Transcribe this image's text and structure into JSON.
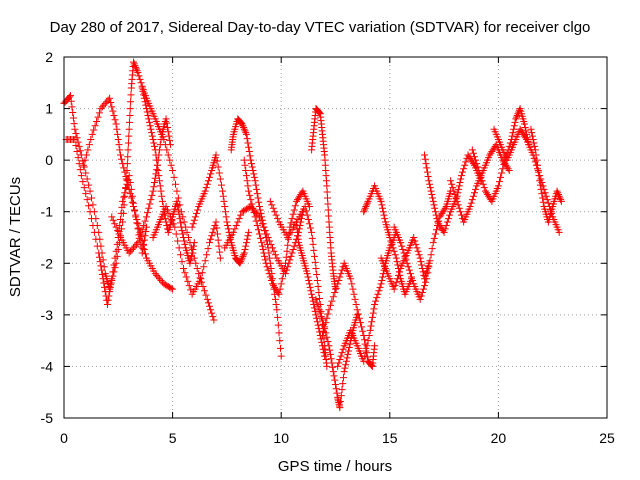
{
  "chart_data": {
    "type": "scatter",
    "title": "Day 280 of 2017, Sidereal Day-to-day VTEC variation (SDTVAR) for receiver clgo",
    "xlabel": "GPS time / hours",
    "ylabel": "SDTVAR / TECUs",
    "xlim": [
      0,
      25
    ],
    "ylim": [
      -5,
      2
    ],
    "x_ticks": [
      0,
      5,
      10,
      15,
      20,
      25
    ],
    "x_tick_labels": [
      "0",
      "5",
      "10",
      "15",
      "20",
      "25"
    ],
    "y_ticks": [
      -5,
      -4,
      -3,
      -2,
      -1,
      0,
      1,
      2
    ],
    "y_tick_labels": [
      "-5",
      "-4",
      "-3",
      "-2",
      "-1",
      "0",
      "1",
      "2"
    ],
    "grid": true,
    "marker": "plus",
    "series_color": "#ff0000",
    "series": [
      {
        "name": "clgo",
        "tracks": [
          [
            [
              0.0,
              1.1
            ],
            [
              0.3,
              1.25
            ],
            [
              0.5,
              0.6
            ],
            [
              0.8,
              0.1
            ],
            [
              1.2,
              -0.6
            ],
            [
              1.6,
              -1.4
            ],
            [
              1.9,
              -2.2
            ],
            [
              2.1,
              -2.5
            ],
            [
              2.4,
              -2.0
            ],
            [
              2.7,
              -1.2
            ],
            [
              2.9,
              -0.2
            ],
            [
              3.0,
              0.6
            ],
            [
              3.1,
              1.4
            ],
            [
              3.2,
              1.9
            ],
            [
              3.4,
              1.7
            ],
            [
              3.7,
              1.3
            ],
            [
              4.0,
              1.0
            ],
            [
              4.3,
              0.7
            ],
            [
              4.6,
              0.4
            ],
            [
              5.0,
              -0.2
            ],
            [
              5.4,
              -1.0
            ],
            [
              5.8,
              -1.6
            ],
            [
              6.2,
              -2.2
            ],
            [
              6.6,
              -2.7
            ],
            [
              6.9,
              -3.1
            ]
          ],
          [
            [
              0.1,
              0.4
            ],
            [
              0.5,
              0.4
            ],
            [
              0.8,
              -0.3
            ],
            [
              1.2,
              -1.0
            ],
            [
              1.6,
              -1.8
            ],
            [
              1.8,
              -2.3
            ],
            [
              2.0,
              -2.8
            ],
            [
              2.2,
              -2.3
            ],
            [
              2.5,
              -1.5
            ],
            [
              2.7,
              -0.8
            ],
            [
              3.0,
              -0.3
            ],
            [
              3.3,
              -1.1
            ],
            [
              3.6,
              -1.8
            ],
            [
              3.8,
              -1.3
            ]
          ],
          [
            [
              0.9,
              -0.1
            ],
            [
              1.3,
              0.5
            ],
            [
              1.7,
              1.0
            ],
            [
              2.1,
              1.2
            ],
            [
              2.4,
              0.7
            ],
            [
              2.6,
              0.1
            ],
            [
              2.9,
              -0.4
            ],
            [
              3.2,
              -0.9
            ],
            [
              3.5,
              -1.4
            ],
            [
              3.8,
              -1.9
            ],
            [
              4.2,
              -2.2
            ],
            [
              4.6,
              -2.4
            ],
            [
              5.0,
              -2.5
            ]
          ],
          [
            [
              2.2,
              -1.1
            ],
            [
              2.6,
              -1.5
            ],
            [
              3.0,
              -1.8
            ],
            [
              3.4,
              -1.6
            ],
            [
              3.8,
              -1.1
            ],
            [
              4.1,
              -0.6
            ],
            [
              4.3,
              -0.1
            ],
            [
              4.5,
              0.5
            ],
            [
              4.7,
              0.8
            ],
            [
              4.9,
              0.3
            ]
          ],
          [
            [
              3.6,
              1.4
            ],
            [
              3.8,
              1.0
            ],
            [
              4.0,
              0.6
            ],
            [
              4.2,
              0.2
            ],
            [
              4.4,
              -0.4
            ],
            [
              4.6,
              -1.0
            ],
            [
              4.8,
              -1.4
            ],
            [
              5.0,
              -1.1
            ],
            [
              5.2,
              -0.8
            ],
            [
              5.4,
              -1.3
            ],
            [
              5.6,
              -1.7
            ],
            [
              5.8,
              -2.0
            ],
            [
              6.0,
              -1.6
            ]
          ],
          [
            [
              4.1,
              -1.5
            ],
            [
              4.4,
              -1.2
            ],
            [
              4.7,
              -0.9
            ],
            [
              5.1,
              -1.3
            ],
            [
              5.5,
              -2.1
            ],
            [
              5.9,
              -2.6
            ],
            [
              6.3,
              -2.3
            ],
            [
              6.7,
              -1.6
            ],
            [
              7.0,
              -1.2
            ],
            [
              7.2,
              -1.9
            ]
          ],
          [
            [
              5.9,
              -1.3
            ],
            [
              6.2,
              -0.9
            ],
            [
              6.5,
              -0.6
            ],
            [
              6.8,
              -0.2
            ],
            [
              7.0,
              0.1
            ],
            [
              7.3,
              -0.6
            ],
            [
              7.5,
              -1.2
            ],
            [
              7.7,
              -1.6
            ],
            [
              7.9,
              -1.9
            ],
            [
              8.1,
              -2.0
            ],
            [
              8.3,
              -1.8
            ],
            [
              8.5,
              -1.4
            ]
          ],
          [
            [
              7.7,
              0.2
            ],
            [
              7.8,
              0.5
            ],
            [
              8.0,
              0.8
            ],
            [
              8.2,
              0.7
            ],
            [
              8.4,
              0.5
            ],
            [
              8.6,
              0.0
            ],
            [
              8.8,
              -0.4
            ],
            [
              9.0,
              -0.9
            ],
            [
              9.2,
              -1.3
            ],
            [
              9.4,
              -1.7
            ],
            [
              9.6,
              -2.3
            ],
            [
              9.8,
              -2.9
            ],
            [
              10.0,
              -3.8
            ]
          ],
          [
            [
              7.4,
              -1.7
            ],
            [
              7.8,
              -1.4
            ],
            [
              8.2,
              -1.0
            ],
            [
              8.6,
              -0.9
            ],
            [
              9.0,
              -1.1
            ],
            [
              9.4,
              -1.5
            ],
            [
              9.8,
              -1.9
            ],
            [
              10.2,
              -2.2
            ],
            [
              10.5,
              -1.8
            ],
            [
              10.8,
              -1.4
            ],
            [
              11.0,
              -1.0
            ]
          ],
          [
            [
              8.3,
              0.0
            ],
            [
              8.5,
              -0.6
            ],
            [
              8.8,
              -1.1
            ],
            [
              9.1,
              -1.6
            ],
            [
              9.3,
              -2.0
            ],
            [
              9.6,
              -2.4
            ],
            [
              9.9,
              -2.6
            ],
            [
              10.2,
              -2.0
            ],
            [
              10.4,
              -1.3
            ],
            [
              10.7,
              -0.8
            ],
            [
              11.0,
              -0.6
            ],
            [
              11.3,
              -0.9
            ]
          ],
          [
            [
              9.5,
              -0.8
            ],
            [
              9.9,
              -1.2
            ],
            [
              10.3,
              -1.5
            ],
            [
              10.7,
              -1.2
            ],
            [
              11.1,
              -0.9
            ],
            [
              11.4,
              -1.4
            ],
            [
              11.6,
              -2.1
            ],
            [
              11.8,
              -2.8
            ],
            [
              12.0,
              -3.6
            ],
            [
              12.1,
              -4.0
            ]
          ],
          [
            [
              10.7,
              -1.2
            ],
            [
              10.8,
              -1.6
            ],
            [
              11.0,
              -1.9
            ],
            [
              11.2,
              -2.2
            ],
            [
              11.4,
              -2.6
            ],
            [
              11.6,
              -3.0
            ],
            [
              11.8,
              -3.4
            ],
            [
              12.0,
              -3.8
            ]
          ],
          [
            [
              11.4,
              0.2
            ],
            [
              11.5,
              0.6
            ],
            [
              11.6,
              1.0
            ],
            [
              11.8,
              0.9
            ],
            [
              11.9,
              0.5
            ],
            [
              12.0,
              0.1
            ],
            [
              12.1,
              -0.5
            ],
            [
              12.2,
              -1.2
            ],
            [
              12.3,
              -1.8
            ],
            [
              12.4,
              -2.2
            ],
            [
              12.5,
              -2.5
            ]
          ],
          [
            [
              11.6,
              -2.7
            ],
            [
              11.9,
              -3.1
            ],
            [
              12.2,
              -3.6
            ],
            [
              12.4,
              -4.1
            ],
            [
              12.6,
              -4.6
            ],
            [
              12.7,
              -4.8
            ],
            [
              12.9,
              -4.1
            ],
            [
              13.1,
              -3.7
            ],
            [
              13.3,
              -3.3
            ],
            [
              13.5,
              -3.0
            ]
          ],
          [
            [
              11.9,
              -3.4
            ],
            [
              12.2,
              -2.9
            ],
            [
              12.6,
              -2.4
            ],
            [
              12.9,
              -2.0
            ],
            [
              13.2,
              -2.3
            ],
            [
              13.5,
              -2.9
            ],
            [
              13.8,
              -3.4
            ],
            [
              14.0,
              -3.9
            ],
            [
              14.2,
              -4.0
            ],
            [
              14.3,
              -3.6
            ]
          ],
          [
            [
              12.6,
              -4.0
            ],
            [
              12.9,
              -3.6
            ],
            [
              13.2,
              -3.3
            ],
            [
              13.5,
              -3.6
            ],
            [
              13.8,
              -3.9
            ],
            [
              14.1,
              -3.3
            ],
            [
              14.3,
              -2.8
            ],
            [
              14.6,
              -2.4
            ],
            [
              14.8,
              -2.0
            ],
            [
              15.0,
              -1.7
            ],
            [
              15.3,
              -1.4
            ]
          ],
          [
            [
              13.8,
              -1.0
            ],
            [
              14.0,
              -0.8
            ],
            [
              14.3,
              -0.5
            ],
            [
              14.6,
              -0.8
            ],
            [
              14.8,
              -1.2
            ],
            [
              15.0,
              -1.5
            ],
            [
              15.3,
              -1.9
            ],
            [
              15.5,
              -2.3
            ],
            [
              15.7,
              -2.6
            ],
            [
              16.0,
              -2.3
            ]
          ],
          [
            [
              14.6,
              -1.9
            ],
            [
              14.9,
              -2.2
            ],
            [
              15.2,
              -2.5
            ],
            [
              15.5,
              -2.1
            ],
            [
              15.8,
              -1.8
            ],
            [
              16.1,
              -1.5
            ],
            [
              16.4,
              -1.9
            ],
            [
              16.6,
              -2.3
            ],
            [
              16.8,
              -2.0
            ]
          ],
          [
            [
              15.2,
              -1.3
            ],
            [
              15.5,
              -1.6
            ],
            [
              15.8,
              -2.0
            ],
            [
              16.1,
              -2.4
            ],
            [
              16.4,
              -2.7
            ],
            [
              16.7,
              -2.3
            ],
            [
              17.0,
              -1.6
            ],
            [
              17.3,
              -1.1
            ],
            [
              17.6,
              -0.9
            ],
            [
              17.8,
              -0.6
            ]
          ],
          [
            [
              16.6,
              0.1
            ],
            [
              16.8,
              -0.4
            ],
            [
              17.0,
              -0.8
            ],
            [
              17.2,
              -1.2
            ],
            [
              17.5,
              -1.4
            ],
            [
              17.8,
              -1.0
            ],
            [
              18.1,
              -0.7
            ],
            [
              18.3,
              -0.3
            ],
            [
              18.6,
              0.1
            ],
            [
              18.9,
              -0.1
            ],
            [
              19.2,
              -0.4
            ]
          ],
          [
            [
              17.8,
              -0.4
            ],
            [
              18.1,
              -0.8
            ],
            [
              18.4,
              -1.2
            ],
            [
              18.7,
              -0.9
            ],
            [
              19.0,
              -0.5
            ],
            [
              19.3,
              -0.2
            ],
            [
              19.6,
              0.1
            ],
            [
              19.9,
              0.3
            ],
            [
              20.2,
              0.0
            ],
            [
              20.5,
              -0.2
            ]
          ],
          [
            [
              18.8,
              0.2
            ],
            [
              19.1,
              -0.2
            ],
            [
              19.4,
              -0.6
            ],
            [
              19.7,
              -0.8
            ],
            [
              20.0,
              -0.5
            ],
            [
              20.3,
              0.0
            ],
            [
              20.6,
              0.4
            ],
            [
              20.8,
              0.8
            ],
            [
              21.0,
              1.0
            ],
            [
              21.2,
              0.7
            ],
            [
              21.4,
              0.3
            ]
          ],
          [
            [
              19.8,
              0.6
            ],
            [
              20.1,
              0.3
            ],
            [
              20.4,
              0.0
            ],
            [
              20.7,
              0.3
            ],
            [
              21.0,
              0.6
            ],
            [
              21.3,
              0.4
            ],
            [
              21.6,
              0.1
            ],
            [
              21.9,
              -0.3
            ],
            [
              22.2,
              -0.7
            ],
            [
              22.5,
              -1.1
            ],
            [
              22.8,
              -1.4
            ]
          ],
          [
            [
              21.5,
              0.6
            ],
            [
              21.7,
              0.2
            ],
            [
              21.9,
              -0.4
            ],
            [
              22.1,
              -0.9
            ],
            [
              22.3,
              -1.2
            ],
            [
              22.5,
              -0.9
            ],
            [
              22.7,
              -0.6
            ],
            [
              22.9,
              -0.8
            ]
          ]
        ]
      }
    ]
  }
}
